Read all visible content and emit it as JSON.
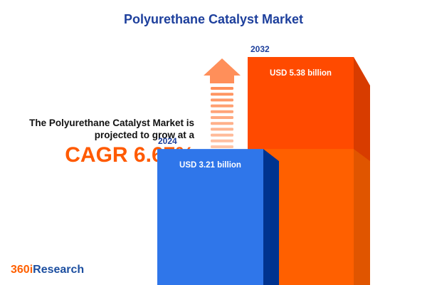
{
  "title": "Polyurethane Catalyst Market",
  "intro_line1": "The Polyurethane Catalyst Market is",
  "intro_line2": "projected to grow at a",
  "cagr": "CAGR 6.67%",
  "logo": {
    "part1": "360i",
    "part2": "Research"
  },
  "colors": {
    "bar_2024": "#2f76ea",
    "bar_2032": "#ff4a00",
    "bar_2032_lower": "#ff6000",
    "title": "#1d3f9c",
    "arrow": "#ff8f5a"
  },
  "icon": "up-arrow-icon",
  "chart_data": {
    "type": "bar",
    "categories": [
      "2024",
      "2032"
    ],
    "values": [
      3.21,
      5.38
    ],
    "value_labels": [
      "USD 3.21 billion",
      "USD 5.38 billion"
    ],
    "unit": "USD billion",
    "title": "Polyurethane Catalyst Market"
  }
}
